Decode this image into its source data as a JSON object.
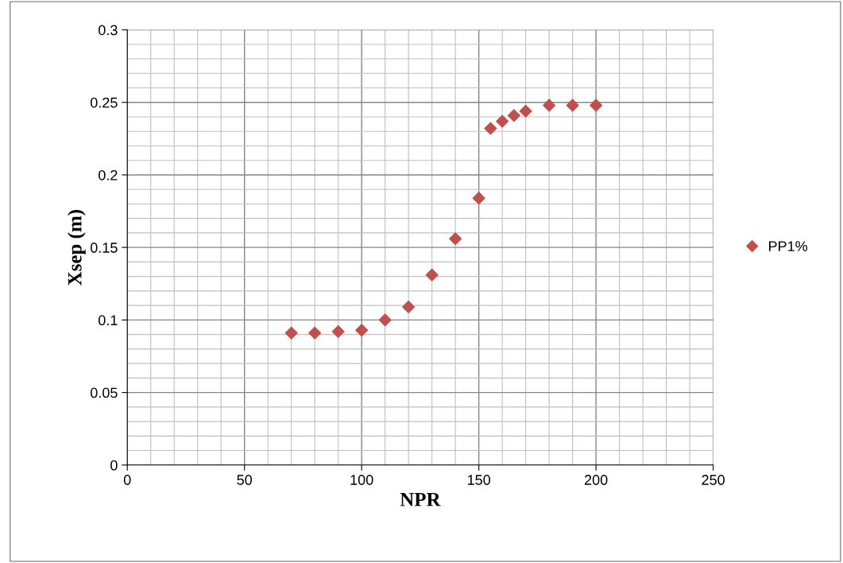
{
  "chart_data": {
    "type": "scatter",
    "xlabel": "NPR",
    "ylabel": "Xsep (m)",
    "x": [
      70,
      80,
      90,
      100,
      110,
      120,
      130,
      140,
      150,
      155,
      160,
      165,
      170,
      180,
      190,
      200
    ],
    "series": [
      {
        "name": "PP1%",
        "color": "#c0504d",
        "values": [
          0.091,
          0.091,
          0.092,
          0.093,
          0.1,
          0.109,
          0.131,
          0.156,
          0.184,
          0.232,
          0.237,
          0.241,
          0.244,
          0.248,
          0.248,
          0.248
        ]
      }
    ],
    "xlim": [
      0,
      250
    ],
    "xticks": [
      0,
      50,
      100,
      150,
      200,
      250
    ],
    "ylim": [
      0,
      0.3
    ],
    "yticks": [
      0,
      0.05,
      0.1,
      0.15,
      0.2,
      0.25,
      0.3
    ],
    "grid": true,
    "legend": "right",
    "marker": "diamond"
  }
}
